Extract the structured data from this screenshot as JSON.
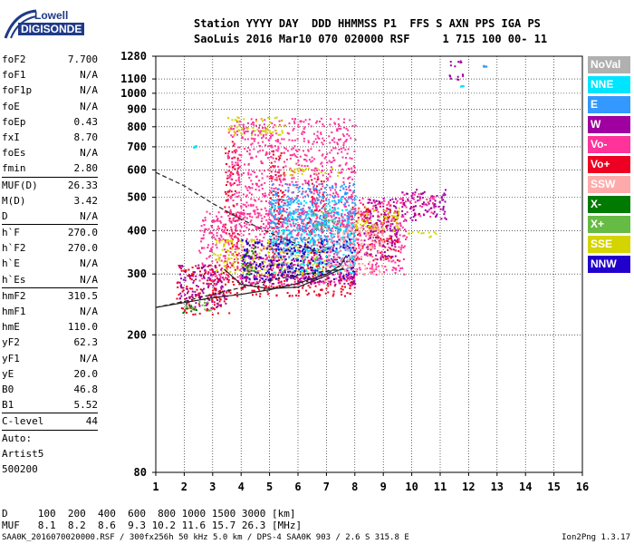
{
  "logo": {
    "line1": "Lowell",
    "line2": "DIGISONDE"
  },
  "header": {
    "labels": "Station YYYY DAY  DDD HHMMSS P1  FFS S AXN PPS IGA PS",
    "values": "SaoLuis 2016 Mar10 070 020000 RSF     1 715 100 00- 11"
  },
  "params": [
    {
      "name": "foF2",
      "value": "7.700"
    },
    {
      "name": "foF1",
      "value": "N/A"
    },
    {
      "name": "foF1p",
      "value": "N/A"
    },
    {
      "name": "foE",
      "value": "N/A"
    },
    {
      "name": "foEp",
      "value": "0.43"
    },
    {
      "name": "fxI",
      "value": "8.70"
    },
    {
      "name": "foEs",
      "value": "N/A"
    },
    {
      "name": "fmin",
      "value": "2.80"
    },
    {
      "sep": true
    },
    {
      "name": "MUF(D)",
      "value": "26.33"
    },
    {
      "name": "M(D)",
      "value": "3.42"
    },
    {
      "name": "D",
      "value": "N/A"
    },
    {
      "sep": true
    },
    {
      "name": "h`F",
      "value": "270.0"
    },
    {
      "name": "h`F2",
      "value": "270.0"
    },
    {
      "name": "h`E",
      "value": "N/A"
    },
    {
      "name": "h`Es",
      "value": "N/A"
    },
    {
      "sep": true
    },
    {
      "name": "hmF2",
      "value": "310.5"
    },
    {
      "name": "hmF1",
      "value": "N/A"
    },
    {
      "name": "hmE",
      "value": "110.0"
    },
    {
      "name": "yF2",
      "value": "62.3"
    },
    {
      "name": "yF1",
      "value": "N/A"
    },
    {
      "name": "yE",
      "value": "20.0"
    },
    {
      "name": "B0",
      "value": "46.8"
    },
    {
      "name": "B1",
      "value": "5.52"
    },
    {
      "sep": true
    },
    {
      "name": "C-level",
      "value": "44"
    },
    {
      "sep": true
    },
    {
      "name": "Auto:",
      "value": ""
    },
    {
      "name": "Artist5",
      "value": ""
    },
    {
      "name": "500200",
      "value": ""
    }
  ],
  "legend": [
    {
      "label": "NoVal",
      "color": "#b0b0b0"
    },
    {
      "label": "NNE",
      "color": "#00e5ff"
    },
    {
      "label": "E",
      "color": "#3399ff"
    },
    {
      "label": "W",
      "color": "#a0009f"
    },
    {
      "label": "Vo-",
      "color": "#ff3399"
    },
    {
      "label": "Vo+",
      "color": "#ee0022"
    },
    {
      "label": "SSW",
      "color": "#ffaaaa"
    },
    {
      "label": "X-",
      "color": "#007a00"
    },
    {
      "label": "X+",
      "color": "#66bb44"
    },
    {
      "label": "SSE",
      "color": "#d4d400"
    },
    {
      "label": "NNW",
      "color": "#2200cc"
    }
  ],
  "dmuf": {
    "d_row": "D     100  200  400  600  800 1000 1500 3000 [km]",
    "muf_row": "MUF   8.1  8.2  8.6  9.3 10.2 11.6 15.7 26.3 [MHz]"
  },
  "footer": "SAA0K_2016070020000.RSF / 300fx256h 50 kHz 5.0 km / DPS-4 SAA0K 903 / 2.6 S 315.8 E",
  "version": "Ion2Png 1.3.17",
  "chart_data": {
    "type": "scatter",
    "xlim": [
      1,
      16
    ],
    "ylim": [
      80,
      1280
    ],
    "y_scale": "log",
    "xticks": [
      1,
      2,
      3,
      4,
      5,
      6,
      7,
      8,
      9,
      10,
      11,
      12,
      13,
      14,
      15,
      16
    ],
    "yticks": [
      80,
      200,
      300,
      400,
      500,
      600,
      700,
      800,
      900,
      1000,
      1100,
      1280
    ],
    "grid": true,
    "legend_position": "right",
    "series": [
      {
        "name": "Vo+",
        "color": "#ee0022",
        "ranges": [
          [
            1.7,
            3.6,
            230,
            320
          ],
          [
            3,
            8,
            260,
            300
          ],
          [
            3.4,
            3.9,
            310,
            750
          ],
          [
            5,
            5.5,
            300,
            700
          ],
          [
            6.3,
            6.9,
            300,
            580
          ],
          [
            7.8,
            9.5,
            330,
            480
          ]
        ]
      },
      {
        "name": "Vo-",
        "color": "#ff3399",
        "ranges": [
          [
            2.5,
            8,
            280,
            460
          ],
          [
            3.5,
            8,
            400,
            850
          ],
          [
            8,
            9.8,
            300,
            500
          ],
          [
            9.6,
            10.8,
            440,
            520
          ]
        ]
      },
      {
        "name": "W",
        "color": "#a0009f",
        "ranges": [
          [
            1.8,
            3.5,
            240,
            320
          ],
          [
            4,
            8,
            280,
            340
          ],
          [
            8.3,
            9.5,
            330,
            500
          ],
          [
            9.6,
            11.2,
            430,
            530
          ],
          [
            11.3,
            11.8,
            1100,
            1250
          ]
        ]
      },
      {
        "name": "SSE",
        "color": "#d4d400",
        "ranges": [
          [
            3.5,
            5.5,
            760,
            860
          ],
          [
            5.5,
            7.5,
            580,
            610
          ],
          [
            3,
            7,
            300,
            380
          ],
          [
            8,
            9.6,
            400,
            470
          ],
          [
            9.8,
            11,
            385,
            400
          ]
        ]
      },
      {
        "name": "X+",
        "color": "#66bb44",
        "ranges": [
          [
            2,
            3,
            235,
            255
          ],
          [
            6.5,
            7.5,
            400,
            470
          ]
        ]
      },
      {
        "name": "X-",
        "color": "#007a00",
        "ranges": [
          [
            1.9,
            2.4,
            230,
            245
          ],
          [
            4,
            4.5,
            300,
            360
          ]
        ]
      },
      {
        "name": "NNE",
        "color": "#00e5ff",
        "ranges": [
          [
            5,
            8,
            300,
            500
          ],
          [
            2.3,
            2.4,
            700,
            710
          ],
          [
            11.7,
            11.8,
            1050,
            1055
          ]
        ]
      },
      {
        "name": "E",
        "color": "#3399ff",
        "ranges": [
          [
            5,
            8,
            350,
            550
          ],
          [
            12.5,
            12.6,
            1200,
            1210
          ]
        ]
      },
      {
        "name": "NNW",
        "color": "#2200cc",
        "ranges": [
          [
            4,
            8,
            290,
            380
          ]
        ]
      },
      {
        "name": "SSW",
        "color": "#ffaaaa",
        "ranges": [
          [
            7,
            9,
            300,
            420
          ]
        ]
      }
    ],
    "curves": [
      {
        "style": "solid",
        "points": [
          [
            1,
            240
          ],
          [
            2,
            248
          ],
          [
            3,
            256
          ],
          [
            4,
            262
          ],
          [
            5,
            270
          ],
          [
            6,
            282
          ],
          [
            7,
            300
          ],
          [
            7.5,
            318
          ],
          [
            7.7,
            340
          ]
        ]
      },
      {
        "style": "solid",
        "points": [
          [
            3.4,
            310
          ],
          [
            4,
            280
          ],
          [
            5,
            272
          ],
          [
            6,
            275
          ],
          [
            6.8,
            292
          ],
          [
            7.6,
            312
          ]
        ]
      },
      {
        "style": "dashed",
        "points": [
          [
            1,
            590
          ],
          [
            2,
            540
          ],
          [
            3,
            480
          ],
          [
            4,
            432
          ],
          [
            5,
            395
          ],
          [
            6,
            365
          ],
          [
            6.8,
            345
          ]
        ]
      },
      {
        "style": "dashed",
        "points": [
          [
            1,
            240
          ],
          [
            2,
            250
          ],
          [
            3,
            262
          ],
          [
            4,
            274
          ],
          [
            5,
            287
          ],
          [
            6,
            298
          ],
          [
            7,
            306
          ],
          [
            7.7,
            310
          ]
        ]
      }
    ]
  }
}
